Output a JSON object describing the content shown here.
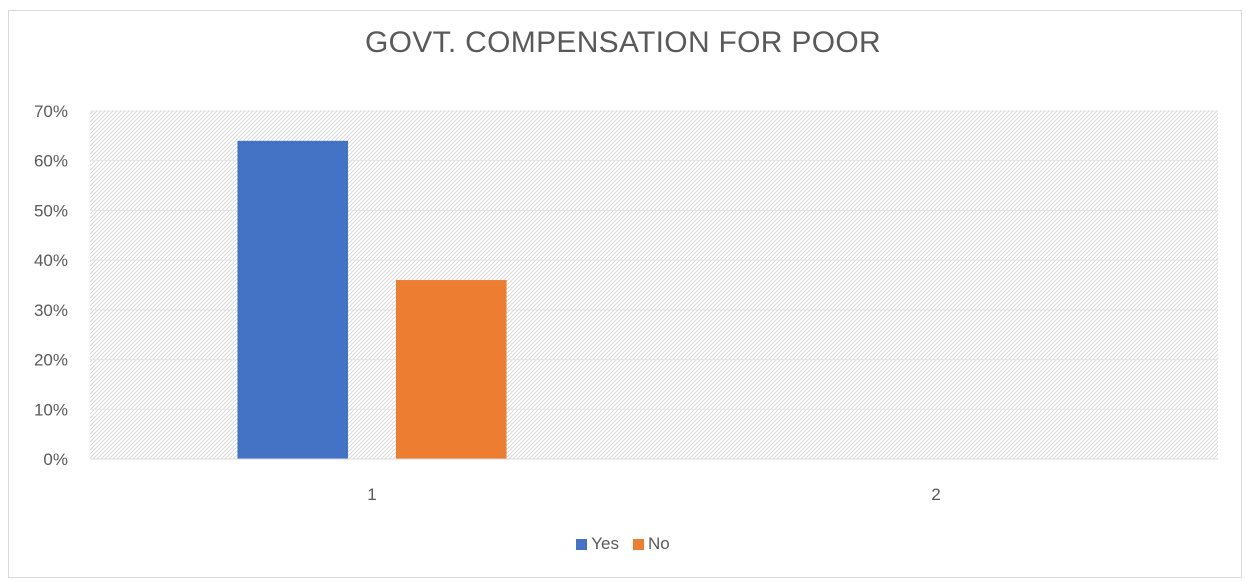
{
  "chart_data": {
    "type": "bar",
    "title": "GOVT. COMPENSATION FOR POOR",
    "categories": [
      "1",
      "2"
    ],
    "series": [
      {
        "name": "Yes",
        "values": [
          0.64,
          null
        ],
        "color": "#4472C4"
      },
      {
        "name": "No",
        "values": [
          0.36,
          null
        ],
        "color": "#ED7D31"
      }
    ],
    "y_ticks": [
      "0%",
      "10%",
      "20%",
      "30%",
      "40%",
      "50%",
      "60%",
      "70%"
    ],
    "ylim": [
      0,
      0.7
    ],
    "xlabel": "",
    "ylabel": "",
    "grid": true,
    "legend_position": "bottom",
    "plot_background": "light diagonal hatch"
  }
}
